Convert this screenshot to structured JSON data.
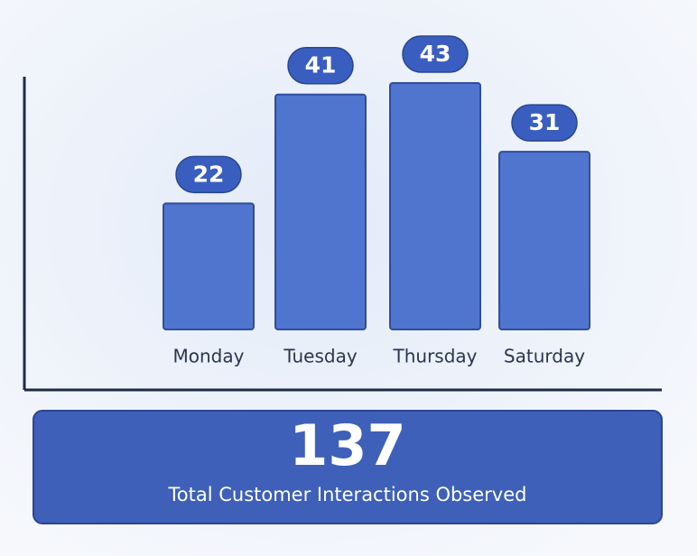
{
  "chart_data": {
    "type": "bar",
    "categories": [
      "Monday",
      "Tuesday",
      "Thursday",
      "Saturday"
    ],
    "values": [
      22,
      41,
      43,
      31
    ],
    "color": "#5075cf"
  },
  "summary": {
    "value": 137,
    "label": "Total Customer Interactions Observed"
  }
}
